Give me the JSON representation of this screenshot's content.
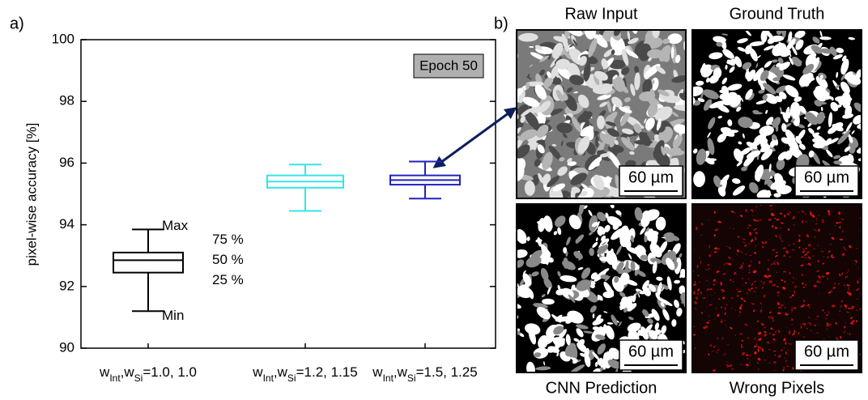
{
  "chart_data": {
    "type": "box",
    "panel_label": "a)",
    "ylabel": "pixel-wise accuracy [%]",
    "ylim": [
      90,
      100
    ],
    "yticks": [
      90,
      92,
      94,
      96,
      98,
      100
    ],
    "categories": [
      [
        "w",
        "Int",
        ",w",
        "Si",
        "=1.0, 1.0"
      ],
      [
        "w",
        "Int",
        ",w",
        "Si",
        "=1.2, 1.15"
      ],
      [
        "w",
        "Int",
        ",w",
        "Si",
        "=1.5, 1.25"
      ]
    ],
    "series": [
      {
        "color": "#000000",
        "min": 91.2,
        "q1": 92.45,
        "median": 92.85,
        "q3": 93.1,
        "max": 93.85
      },
      {
        "color": "#33e6e6",
        "min": 94.45,
        "q1": 95.2,
        "median": 95.4,
        "q3": 95.6,
        "max": 95.95
      },
      {
        "color": "#2222bb",
        "min": 94.85,
        "q1": 95.3,
        "median": 95.45,
        "q3": 95.6,
        "max": 96.05
      }
    ],
    "annotations": {
      "max": "Max",
      "q3": "75 %",
      "median": "50 %",
      "q1": "25 %",
      "min": "Min",
      "epoch": "Epoch 50"
    }
  },
  "image_panel": {
    "label": "b)",
    "images": [
      {
        "title": "Raw Input",
        "scale_bar": "60 µm"
      },
      {
        "title": "Ground Truth",
        "scale_bar": "60 µm"
      },
      {
        "title": "CNN Prediction",
        "scale_bar": "60 µm"
      },
      {
        "title": "Wrong Pixels",
        "scale_bar": "60 µm"
      }
    ]
  }
}
